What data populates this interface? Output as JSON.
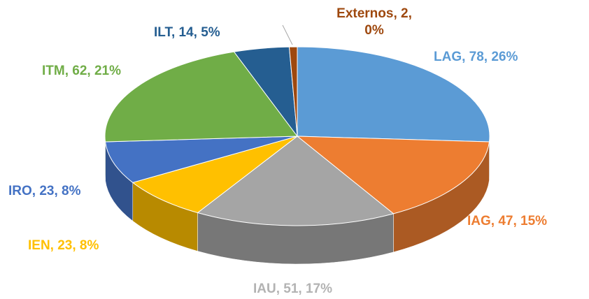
{
  "chart_data": {
    "type": "pie3d",
    "categories": [
      "LAG",
      "IAG",
      "IAU",
      "IEN",
      "IRO",
      "ITM",
      "ILT",
      "Externos"
    ],
    "values": [
      78,
      47,
      51,
      23,
      23,
      62,
      14,
      2
    ],
    "value_labels": [
      "LAG, 78, 26%",
      "IAG, 47, 15%",
      "IAU, 51, 17%",
      "IEN, 23, 8%",
      "IRO, 23, 8%",
      "ITM, 62, 21%",
      "ILT, 14, 5%",
      "Externos, 2, 0%"
    ],
    "colors": [
      "#5b9bd5",
      "#ed7d31",
      "#a5a5a5",
      "#ffc000",
      "#4472c4",
      "#70ad47",
      "#255e91",
      "#9e480e"
    ]
  }
}
